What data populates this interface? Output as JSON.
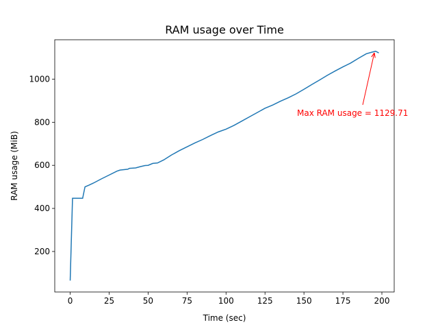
{
  "chart_data": {
    "type": "line",
    "title": "RAM usage over Time",
    "x_label": "Time (sec)",
    "y_label": "RAM usage (MiB)",
    "annotation": "Max RAM usage = 1129.71",
    "annotation_color": "#ff0000",
    "color": "#1f77b4",
    "x": [
      0,
      1.5,
      8,
      9.5,
      12,
      15,
      20,
      25,
      30,
      32,
      37,
      38,
      42,
      45,
      48,
      50,
      53,
      56,
      60,
      65,
      70,
      75,
      80,
      85,
      90,
      95,
      100,
      105,
      110,
      115,
      120,
      125,
      130,
      135,
      140,
      145,
      150,
      155,
      160,
      165,
      170,
      175,
      180,
      185,
      190,
      194,
      196,
      198
    ],
    "values": [
      65,
      447,
      447,
      500,
      508,
      518,
      537,
      555,
      573,
      578,
      582,
      586,
      588,
      594,
      599,
      600,
      609,
      611,
      625,
      648,
      668,
      686,
      704,
      720,
      738,
      755,
      768,
      785,
      805,
      825,
      845,
      865,
      880,
      898,
      914,
      932,
      953,
      975,
      996,
      1018,
      1038,
      1057,
      1075,
      1097,
      1118,
      1126,
      1129.71,
      1122
    ],
    "xlim": [
      -9.9,
      207.9
    ],
    "ylim": [
      12,
      1183
    ],
    "xticks": [
      0,
      25,
      50,
      75,
      100,
      125,
      150,
      175,
      200
    ],
    "yticks": [
      200,
      400,
      600,
      800,
      1000
    ]
  }
}
